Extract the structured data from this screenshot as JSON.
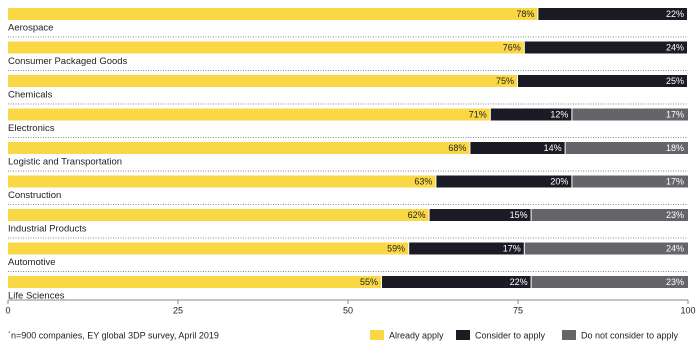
{
  "chart_data": {
    "type": "stacked-bar-horizontal",
    "categories": [
      "Aerospace",
      "Consumer Packaged Goods",
      "Chemicals",
      "Electronics",
      "Logistic and Transportation",
      "Construction",
      "Industrial Products",
      "Automotive",
      "Life Sciences"
    ],
    "series": [
      {
        "name": "Already apply",
        "color": "#fad744",
        "values": [
          78,
          76,
          75,
          71,
          68,
          63,
          62,
          59,
          55
        ],
        "value_labels": [
          "78%",
          "76%",
          "75%",
          "71%",
          "68%",
          "63%",
          "62%",
          "59%",
          "55%"
        ]
      },
      {
        "name": "Consider to apply",
        "color": "#1b1b25",
        "values": [
          22,
          24,
          25,
          12,
          14,
          20,
          15,
          17,
          22
        ],
        "value_labels": [
          "22%",
          "24%",
          "25%",
          "12%",
          "14%",
          "20%",
          "15%",
          "17%",
          "22%"
        ]
      },
      {
        "name": "Do not consider to apply",
        "color": "#646569",
        "values": [
          null,
          null,
          null,
          17,
          18,
          17,
          23,
          24,
          23
        ],
        "value_labels": [
          null,
          null,
          null,
          "17%",
          "18%",
          "17%",
          "23%",
          "24%",
          "23%"
        ]
      }
    ],
    "xlim": [
      0,
      100
    ],
    "xticks": [
      0,
      25,
      50,
      75,
      100
    ],
    "footnote": "´n=900 companies, EY global 3DP survey, April 2019"
  }
}
